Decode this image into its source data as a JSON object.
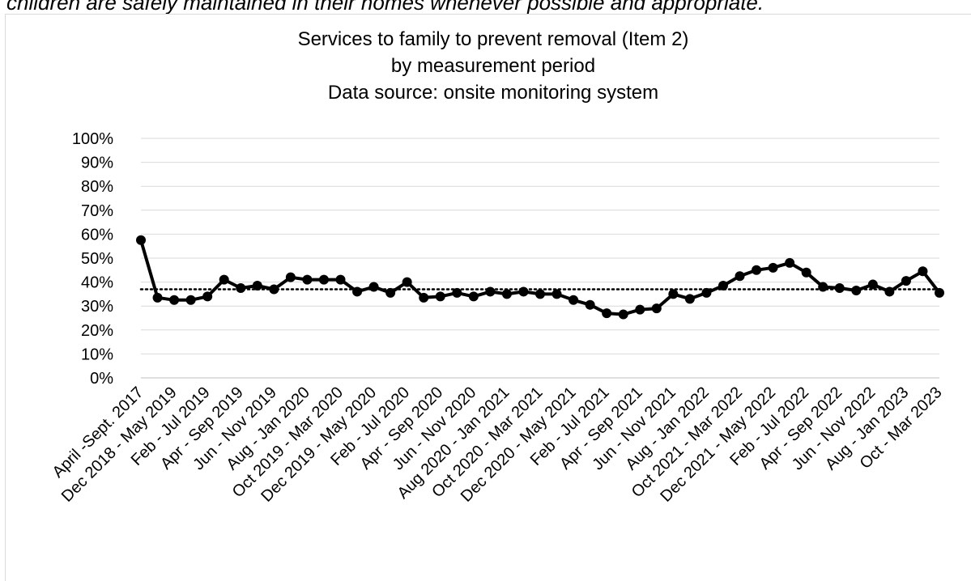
{
  "page": {
    "partial_heading": "children are safely maintained in their homes whenever possible and appropriate."
  },
  "chart_data": {
    "type": "line",
    "title_lines": [
      "Services to family to prevent removal (Item 2)",
      "by measurement period",
      "Data source: onsite monitoring system"
    ],
    "xlabel": "",
    "ylabel": "",
    "ylim": [
      0,
      100
    ],
    "y_ticks": [
      "0%",
      "10%",
      "20%",
      "30%",
      "40%",
      "50%",
      "60%",
      "70%",
      "80%",
      "90%",
      "100%"
    ],
    "y_tick_values": [
      0,
      10,
      20,
      30,
      40,
      50,
      60,
      70,
      80,
      90,
      100
    ],
    "x_tick_labels": [
      "April -Sept. 2017",
      "Dec 2018 - May 2019",
      "Feb - Jul 2019",
      "Apr - Sep 2019",
      "Jun - Nov 2019",
      "Aug - Jan 2020",
      "Oct 2019 - Mar 2020",
      "Dec 2019 - May 2020",
      "Feb - Jul 2020",
      "Apr - Sep 2020",
      "Jun - Nov 2020",
      "Aug 2020 - Jan 2021",
      "Oct 2020 - Mar 2021",
      "Dec 2020 - May 2021",
      "Feb - Jul 2021",
      "Apr - Sep 2021",
      "Jun - Nov 2021",
      "Aug - Jan 2022",
      "Oct 2021 - Mar 2022",
      "Dec 2021 - May 2022",
      "Feb - Jul 2022",
      "Apr - Sep 2022",
      "Jun - Nov 2022",
      "Aug - Jan 2023",
      "Oct - Mar 2023"
    ],
    "series": [
      {
        "values": [
          57.5,
          33.5,
          32.5,
          32.5,
          34,
          41,
          37.5,
          38.5,
          37,
          42,
          41,
          41,
          41,
          36,
          38,
          35.5,
          40,
          33.5,
          34,
          35.5,
          34,
          36,
          35,
          36,
          35,
          35,
          32.5,
          30.5,
          27,
          26.5,
          28.5,
          29,
          35,
          33,
          35.5,
          38.5,
          42.5,
          45,
          46,
          48,
          44,
          38,
          37.5,
          36.5,
          39,
          36,
          40.5,
          44.5,
          35.5
        ],
        "color": "#000000"
      }
    ],
    "reference_line": {
      "value": 37,
      "style": "dotted",
      "color": "#000000"
    },
    "grid": "horizontal",
    "legend": "none"
  }
}
